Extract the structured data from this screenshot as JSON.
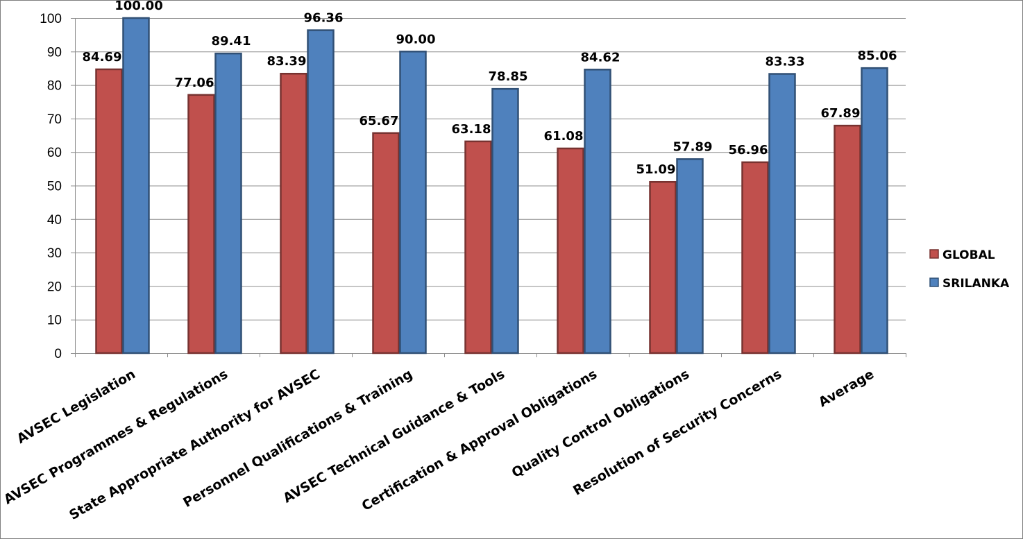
{
  "chart_data": {
    "type": "bar",
    "categories": [
      "AVSEC Legislation",
      "AVSEC Programmes & Regulations",
      "State Appropriate Authority for AVSEC",
      "Personnel Qualifications & Training",
      "AVSEC Technical Guidance & Tools",
      "Certification & Approval Obligations",
      "Quality Control Obligations",
      "Resolution of Security Concerns",
      "Average"
    ],
    "series": [
      {
        "name": "GLOBAL",
        "color": "#c0504d",
        "values": [
          84.69,
          77.06,
          83.39,
          65.67,
          63.18,
          61.08,
          51.09,
          56.96,
          67.89
        ],
        "labels": [
          "84.69",
          "77.06",
          "83.39",
          "65.67",
          "63.18",
          "61.08",
          "51.09",
          "56.96",
          "67.89"
        ]
      },
      {
        "name": "SRILANKA",
        "color": "#4f81bd",
        "values": [
          100.0,
          89.41,
          96.36,
          90.0,
          78.85,
          84.62,
          57.89,
          83.33,
          85.06
        ],
        "labels": [
          "100.00",
          "89.41",
          "96.36",
          "90.00",
          "78.85",
          "84.62",
          "57.89",
          "83.33",
          "85.06"
        ]
      }
    ],
    "yticks": [
      "0",
      "10",
      "20",
      "30",
      "40",
      "50",
      "60",
      "70",
      "80",
      "90",
      "100"
    ],
    "ylim": [
      0,
      100
    ],
    "grid": true,
    "legend_position": "right",
    "title": "",
    "xlabel": "",
    "ylabel": ""
  }
}
